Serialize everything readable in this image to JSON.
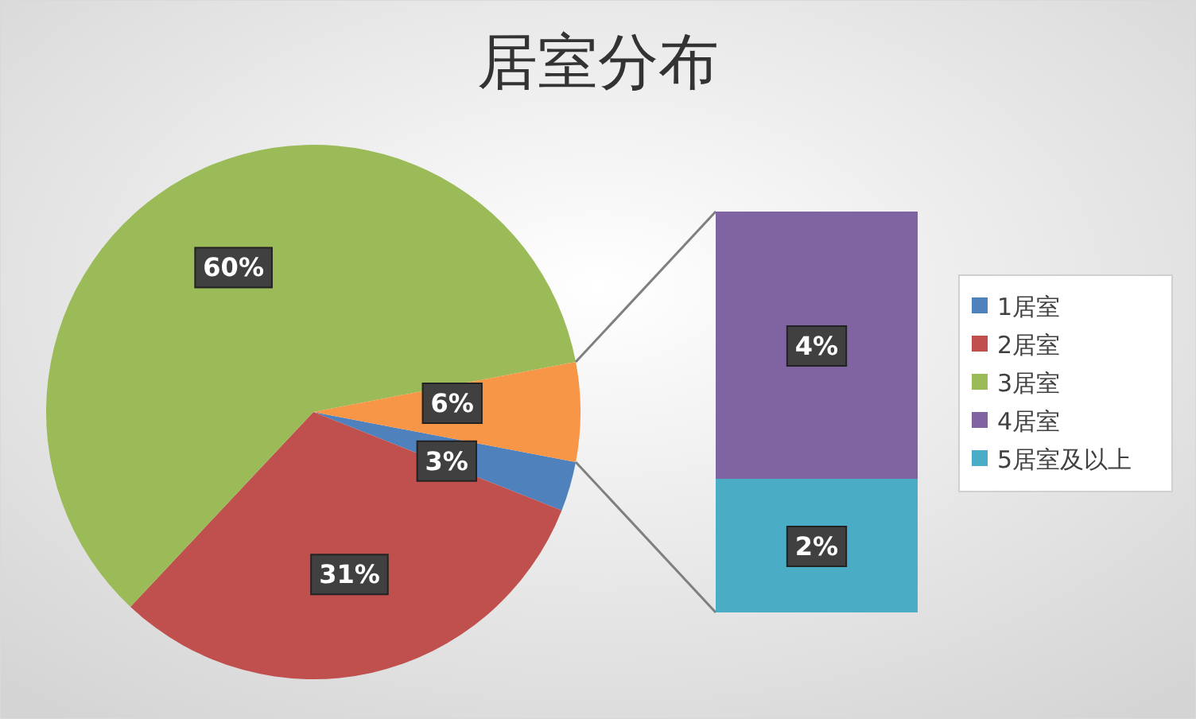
{
  "chart_data": [
    {
      "type": "pie",
      "title": "居室分布",
      "categories": [
        "1居室",
        "2居室",
        "3居室",
        null
      ],
      "values": [
        3,
        31,
        60,
        6
      ],
      "value_labels": [
        "3%",
        "31%",
        "60%",
        "6%"
      ],
      "colors": [
        "#4f81bd",
        "#c0504d",
        "#9bbb59",
        "#f79646"
      ],
      "legend": "right"
    },
    {
      "type": "bar",
      "stacked": true,
      "categories": [
        null
      ],
      "series": [
        {
          "name": "5居室及以上",
          "color": "#4bacc6",
          "values": [
            2
          ],
          "value_labels": [
            "2%"
          ]
        },
        {
          "name": "4居室",
          "color": "#8064a2",
          "values": [
            4
          ],
          "value_labels": [
            "4%"
          ]
        }
      ],
      "legend": "right"
    }
  ]
}
